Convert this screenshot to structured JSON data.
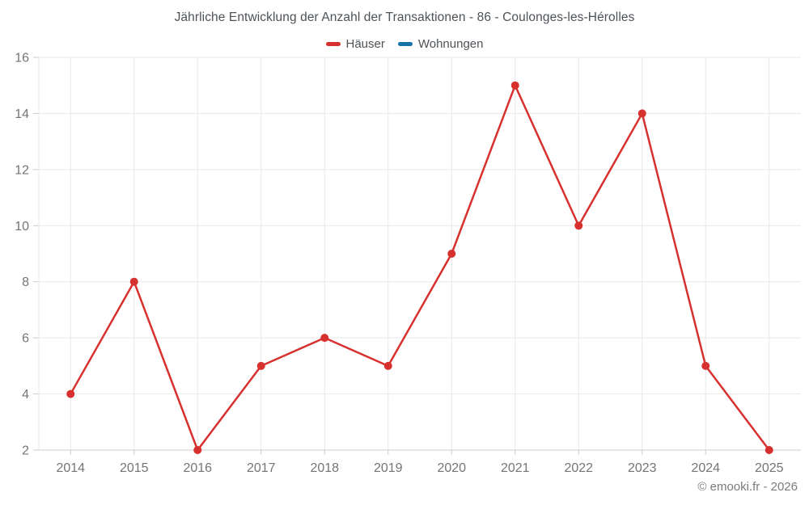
{
  "title": "Jährliche Entwicklung der Anzahl der Transaktionen - 86 - Coulonges-les-Hérolles",
  "legend": {
    "items": [
      {
        "label": "Häuser",
        "color": "#d7312f"
      },
      {
        "label": "Wohnungen",
        "color": "#1673aa"
      }
    ]
  },
  "footer": {
    "text": "© emooki.fr - 2026"
  },
  "chart_data": {
    "type": "line",
    "title": "Jährliche Entwicklung der Anzahl der Transaktionen - 86 - Coulonges-les-Hérolles",
    "x": [
      "2014",
      "2015",
      "2016",
      "2017",
      "2018",
      "2019",
      "2020",
      "2021",
      "2022",
      "2023",
      "2024",
      "2025"
    ],
    "series": [
      {
        "name": "Häuser",
        "color": "#d7312f",
        "values": [
          4,
          8,
          2,
          5,
          6,
          5,
          9,
          15,
          10,
          14,
          5,
          2
        ]
      },
      {
        "name": "Wohnungen",
        "color": "#1673aa",
        "values": []
      }
    ],
    "ylim": [
      2,
      16
    ],
    "ytick_step": 2,
    "yticks": [
      2,
      4,
      6,
      8,
      10,
      12,
      14,
      16
    ],
    "grid": true,
    "legend_position": "top",
    "grid_color": "#e8e8e8",
    "axis_line_color": "#cccccc",
    "axis_label_color": "#757575",
    "marker_radius": 5,
    "line_width": 2.5
  }
}
